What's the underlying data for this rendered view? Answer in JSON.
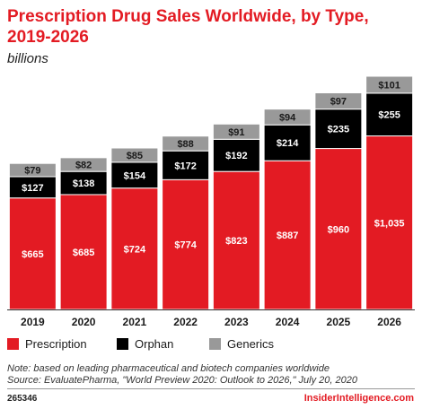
{
  "header": {
    "title": "Prescription Drug Sales Worldwide, by Type, 2019-2026",
    "subtitle": "billions"
  },
  "colors": {
    "prescription": "#e31b23",
    "orphan": "#000000",
    "generics": "#999999",
    "brand": "#e31b23"
  },
  "chart_data": {
    "type": "bar",
    "stacked": true,
    "categories": [
      "2019",
      "2020",
      "2021",
      "2022",
      "2023",
      "2024",
      "2025",
      "2026"
    ],
    "series": [
      {
        "name": "Prescription",
        "values": [
          665,
          685,
          724,
          774,
          823,
          887,
          960,
          1035
        ],
        "labels": [
          "$665",
          "$685",
          "$724",
          "$774",
          "$823",
          "$887",
          "$960",
          "$1,035"
        ]
      },
      {
        "name": "Orphan",
        "values": [
          127,
          138,
          154,
          172,
          192,
          214,
          235,
          255
        ],
        "labels": [
          "$127",
          "$138",
          "$154",
          "$172",
          "$192",
          "$214",
          "$235",
          "$255"
        ]
      },
      {
        "name": "Generics",
        "values": [
          79,
          82,
          85,
          88,
          91,
          94,
          97,
          101
        ],
        "labels": [
          "$79",
          "$82",
          "$85",
          "$88",
          "$91",
          "$94",
          "$97",
          "$101"
        ]
      }
    ],
    "ylim": [
      0,
      1391
    ],
    "grid": false,
    "legend_position": "bottom-left"
  },
  "footer": {
    "note": "Note: based on leading pharmaceutical and biotech companies worldwide",
    "source": "Source: EvaluatePharma, \"World Preview 2020: Outlook to 2026,\" July 20, 2020",
    "chart_id": "265346",
    "brand": "InsiderIntelligence.com"
  }
}
